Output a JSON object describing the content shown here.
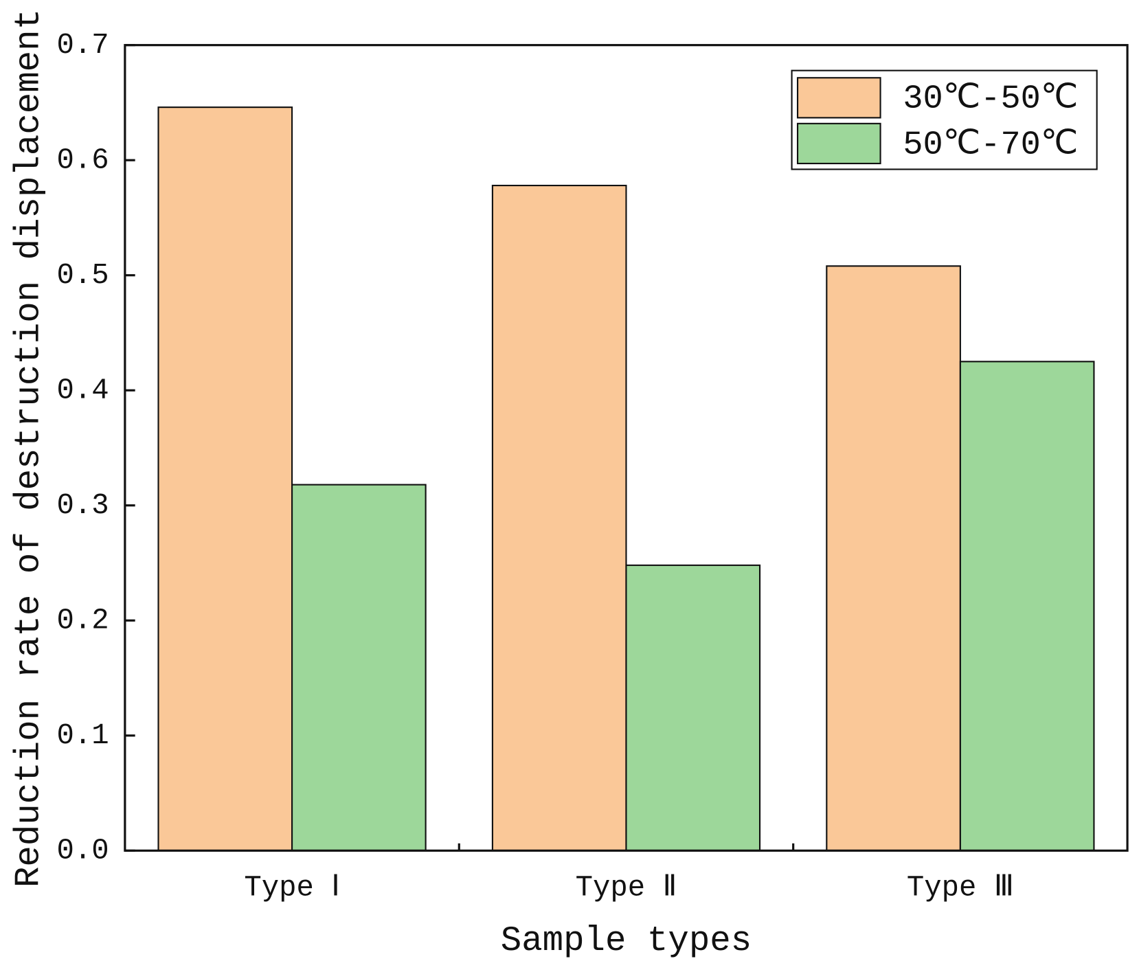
{
  "chart_data": {
    "type": "bar",
    "x_label": "Sample types",
    "y_label": "Reduction rate of destruction displacement",
    "categories": [
      "Type Ⅰ",
      "Type Ⅱ",
      "Type Ⅲ"
    ],
    "series": [
      {
        "name": "30℃-50℃",
        "color": "#fac898",
        "values": [
          0.646,
          0.578,
          0.508
        ]
      },
      {
        "name": "50℃-70℃",
        "color": "#9dd79a",
        "values": [
          0.318,
          0.248,
          0.425
        ]
      }
    ],
    "ylim": [
      0,
      0.7
    ],
    "yticks": [
      {
        "value": 0,
        "label": "0.0"
      },
      0.1,
      0.2,
      0.3,
      0.4,
      0.5,
      0.6,
      0.7
    ],
    "legend": "upper right"
  }
}
